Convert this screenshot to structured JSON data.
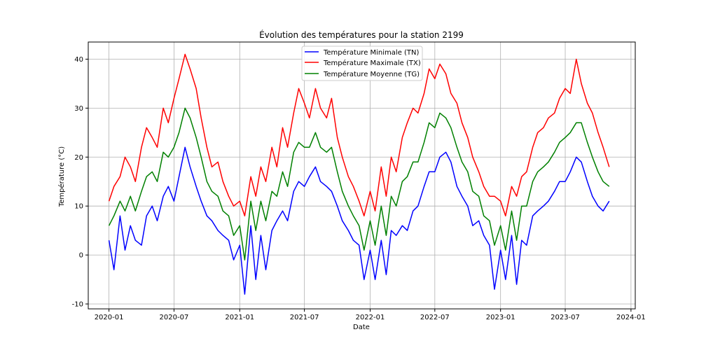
{
  "chart_data": {
    "type": "line",
    "title": "Évolution des températures pour la station 2199",
    "xlabel": "Date",
    "ylabel": "Température (°C)",
    "xlim": [
      "2019-11-04",
      "2024-01-13"
    ],
    "ylim": [
      -11,
      43.5
    ],
    "grid": true,
    "legend_position": "top-center",
    "x_ticks": [
      "2020-01",
      "2020-07",
      "2021-01",
      "2021-07",
      "2022-01",
      "2022-07",
      "2023-01",
      "2023-07",
      "2024-01"
    ],
    "y_ticks": [
      -10,
      0,
      10,
      20,
      30,
      40
    ],
    "series": [
      {
        "name": "Température Minimale (TN)",
        "color": "#0000ff",
        "x": [
          "2020-01-01",
          "2020-01-15",
          "2020-02-01",
          "2020-02-15",
          "2020-03-01",
          "2020-03-15",
          "2020-04-01",
          "2020-04-15",
          "2020-05-01",
          "2020-05-15",
          "2020-06-01",
          "2020-06-15",
          "2020-07-01",
          "2020-07-15",
          "2020-08-01",
          "2020-08-15",
          "2020-09-01",
          "2020-09-15",
          "2020-10-01",
          "2020-10-15",
          "2020-11-01",
          "2020-11-15",
          "2020-12-01",
          "2020-12-15",
          "2021-01-01",
          "2021-01-15",
          "2021-02-01",
          "2021-02-15",
          "2021-03-01",
          "2021-03-15",
          "2021-04-01",
          "2021-04-15",
          "2021-05-01",
          "2021-05-15",
          "2021-06-01",
          "2021-06-15",
          "2021-07-01",
          "2021-07-15",
          "2021-08-01",
          "2021-08-15",
          "2021-09-01",
          "2021-09-15",
          "2021-10-01",
          "2021-10-15",
          "2021-11-01",
          "2021-11-15",
          "2021-12-01",
          "2021-12-15",
          "2022-01-01",
          "2022-01-15",
          "2022-02-01",
          "2022-02-15",
          "2022-03-01",
          "2022-03-15",
          "2022-04-01",
          "2022-04-15",
          "2022-05-01",
          "2022-05-15",
          "2022-06-01",
          "2022-06-15",
          "2022-07-01",
          "2022-07-15",
          "2022-08-01",
          "2022-08-15",
          "2022-09-01",
          "2022-09-15",
          "2022-10-01",
          "2022-10-15",
          "2022-11-01",
          "2022-11-15",
          "2022-12-01",
          "2022-12-15",
          "2023-01-01",
          "2023-01-15",
          "2023-02-01",
          "2023-02-15",
          "2023-03-01",
          "2023-03-15",
          "2023-04-01",
          "2023-04-15",
          "2023-05-01",
          "2023-05-15",
          "2023-06-01",
          "2023-06-15",
          "2023-07-01",
          "2023-07-15",
          "2023-08-01",
          "2023-08-15",
          "2023-09-01",
          "2023-09-15",
          "2023-10-01",
          "2023-10-15",
          "2023-11-01"
        ],
        "values": [
          3,
          -3,
          8,
          1,
          6,
          3,
          2,
          8,
          10,
          7,
          12,
          14,
          11,
          16,
          22,
          18,
          14,
          11,
          8,
          7,
          5,
          4,
          3,
          -1,
          2,
          -8,
          6,
          -5,
          4,
          -3,
          5,
          7,
          9,
          7,
          13,
          15,
          14,
          16,
          18,
          15,
          14,
          13,
          10,
          7,
          5,
          3,
          2,
          -5,
          1,
          -5,
          3,
          -4,
          5,
          4,
          6,
          5,
          9,
          10,
          14,
          17,
          17,
          20,
          21,
          19,
          14,
          12,
          10,
          6,
          7,
          4,
          2,
          -7,
          1,
          -5,
          4,
          -6,
          3,
          2,
          8,
          9,
          10,
          11,
          13,
          15,
          15,
          17,
          20,
          19,
          15,
          12,
          10,
          9,
          11
        ]
      },
      {
        "name": "Température Maximale (TX)",
        "color": "#ff0000",
        "x": [
          "2020-01-01",
          "2020-01-15",
          "2020-02-01",
          "2020-02-15",
          "2020-03-01",
          "2020-03-15",
          "2020-04-01",
          "2020-04-15",
          "2020-05-01",
          "2020-05-15",
          "2020-06-01",
          "2020-06-15",
          "2020-07-01",
          "2020-07-15",
          "2020-08-01",
          "2020-08-15",
          "2020-09-01",
          "2020-09-15",
          "2020-10-01",
          "2020-10-15",
          "2020-11-01",
          "2020-11-15",
          "2020-12-01",
          "2020-12-15",
          "2021-01-01",
          "2021-01-15",
          "2021-02-01",
          "2021-02-15",
          "2021-03-01",
          "2021-03-15",
          "2021-04-01",
          "2021-04-15",
          "2021-05-01",
          "2021-05-15",
          "2021-06-01",
          "2021-06-15",
          "2021-07-01",
          "2021-07-15",
          "2021-08-01",
          "2021-08-15",
          "2021-09-01",
          "2021-09-15",
          "2021-10-01",
          "2021-10-15",
          "2021-11-01",
          "2021-11-15",
          "2021-12-01",
          "2021-12-15",
          "2022-01-01",
          "2022-01-15",
          "2022-02-01",
          "2022-02-15",
          "2022-03-01",
          "2022-03-15",
          "2022-04-01",
          "2022-04-15",
          "2022-05-01",
          "2022-05-15",
          "2022-06-01",
          "2022-06-15",
          "2022-07-01",
          "2022-07-15",
          "2022-08-01",
          "2022-08-15",
          "2022-09-01",
          "2022-09-15",
          "2022-10-01",
          "2022-10-15",
          "2022-11-01",
          "2022-11-15",
          "2022-12-01",
          "2022-12-15",
          "2023-01-01",
          "2023-01-15",
          "2023-02-01",
          "2023-02-15",
          "2023-03-01",
          "2023-03-15",
          "2023-04-01",
          "2023-04-15",
          "2023-05-01",
          "2023-05-15",
          "2023-06-01",
          "2023-06-15",
          "2023-07-01",
          "2023-07-15",
          "2023-08-01",
          "2023-08-15",
          "2023-09-01",
          "2023-09-15",
          "2023-10-01",
          "2023-10-15",
          "2023-11-01"
        ],
        "values": [
          11,
          14,
          16,
          20,
          18,
          15,
          22,
          26,
          24,
          22,
          30,
          27,
          32,
          36,
          41,
          38,
          34,
          28,
          22,
          18,
          19,
          15,
          12,
          10,
          11,
          8,
          16,
          12,
          18,
          15,
          22,
          18,
          26,
          22,
          29,
          34,
          31,
          28,
          34,
          30,
          28,
          32,
          24,
          20,
          16,
          14,
          11,
          8,
          13,
          9,
          18,
          12,
          20,
          17,
          24,
          27,
          30,
          29,
          33,
          38,
          36,
          39,
          37,
          33,
          31,
          27,
          24,
          20,
          17,
          14,
          12,
          12,
          11,
          8,
          14,
          12,
          16,
          17,
          22,
          25,
          26,
          28,
          29,
          32,
          34,
          33,
          40,
          35,
          31,
          29,
          25,
          22,
          18
        ]
      },
      {
        "name": "Température Moyenne (TG)",
        "color": "#008000",
        "x": [
          "2020-01-01",
          "2020-01-15",
          "2020-02-01",
          "2020-02-15",
          "2020-03-01",
          "2020-03-15",
          "2020-04-01",
          "2020-04-15",
          "2020-05-01",
          "2020-05-15",
          "2020-06-01",
          "2020-06-15",
          "2020-07-01",
          "2020-07-15",
          "2020-08-01",
          "2020-08-15",
          "2020-09-01",
          "2020-09-15",
          "2020-10-01",
          "2020-10-15",
          "2020-11-01",
          "2020-11-15",
          "2020-12-01",
          "2020-12-15",
          "2021-01-01",
          "2021-01-15",
          "2021-02-01",
          "2021-02-15",
          "2021-03-01",
          "2021-03-15",
          "2021-04-01",
          "2021-04-15",
          "2021-05-01",
          "2021-05-15",
          "2021-06-01",
          "2021-06-15",
          "2021-07-01",
          "2021-07-15",
          "2021-08-01",
          "2021-08-15",
          "2021-09-01",
          "2021-09-15",
          "2021-10-01",
          "2021-10-15",
          "2021-11-01",
          "2021-11-15",
          "2021-12-01",
          "2021-12-15",
          "2022-01-01",
          "2022-01-15",
          "2022-02-01",
          "2022-02-15",
          "2022-03-01",
          "2022-03-15",
          "2022-04-01",
          "2022-04-15",
          "2022-05-01",
          "2022-05-15",
          "2022-06-01",
          "2022-06-15",
          "2022-07-01",
          "2022-07-15",
          "2022-08-01",
          "2022-08-15",
          "2022-09-01",
          "2022-09-15",
          "2022-10-01",
          "2022-10-15",
          "2022-11-01",
          "2022-11-15",
          "2022-12-01",
          "2022-12-15",
          "2023-01-01",
          "2023-01-15",
          "2023-02-01",
          "2023-02-15",
          "2023-03-01",
          "2023-03-15",
          "2023-04-01",
          "2023-04-15",
          "2023-05-01",
          "2023-05-15",
          "2023-06-01",
          "2023-06-15",
          "2023-07-01",
          "2023-07-15",
          "2023-08-01",
          "2023-08-15",
          "2023-09-01",
          "2023-09-15",
          "2023-10-01",
          "2023-10-15",
          "2023-11-01"
        ],
        "values": [
          6,
          8,
          11,
          9,
          12,
          9,
          13,
          16,
          17,
          15,
          21,
          20,
          22,
          25,
          30,
          28,
          24,
          20,
          15,
          13,
          12,
          9,
          8,
          4,
          6,
          -1,
          11,
          5,
          11,
          7,
          13,
          12,
          17,
          14,
          21,
          23,
          22,
          22,
          25,
          22,
          21,
          22,
          17,
          13,
          10,
          8,
          6,
          1,
          7,
          2,
          10,
          4,
          12,
          10,
          15,
          16,
          19,
          19,
          23,
          27,
          26,
          29,
          28,
          26,
          22,
          19,
          17,
          13,
          12,
          8,
          7,
          2,
          6,
          1,
          9,
          3,
          10,
          10,
          15,
          17,
          18,
          19,
          21,
          23,
          24,
          25,
          27,
          27,
          23,
          20,
          17,
          15,
          14
        ]
      }
    ]
  }
}
